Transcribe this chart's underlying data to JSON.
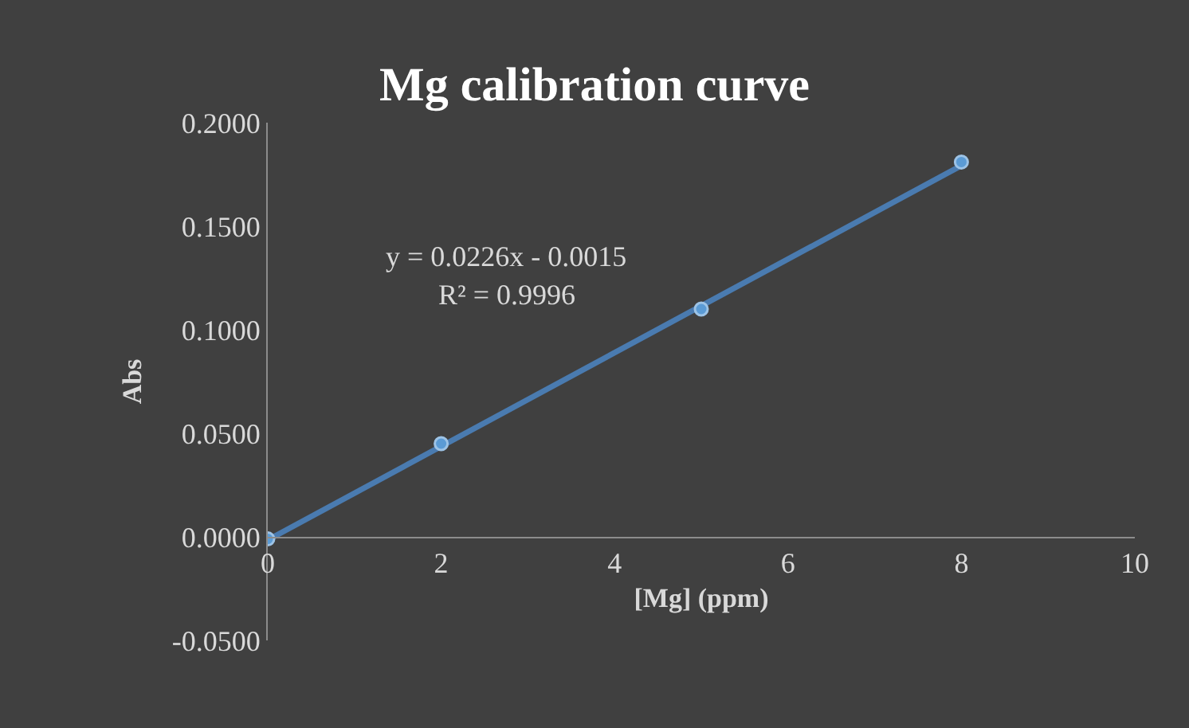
{
  "chart_data": {
    "type": "scatter",
    "title": "Mg calibration curve",
    "xlabel": "[Mg] (ppm)",
    "ylabel": "Abs",
    "annotations": [
      "y = 0.0226x - 0.0015",
      "R² = 0.9996"
    ],
    "xlim": [
      0,
      10
    ],
    "xticks": [
      0,
      2,
      4,
      6,
      8,
      10
    ],
    "ylim": [
      -0.05,
      0.2
    ],
    "yticks": [
      {
        "value": -0.05,
        "label": "-0.0500"
      },
      {
        "value": 0,
        "label": "0.0000"
      },
      {
        "value": 0.05,
        "label": "0.0500"
      },
      {
        "value": 0.1,
        "label": "0.1000"
      },
      {
        "value": 0.15,
        "label": "0.1500"
      },
      {
        "value": 0.2,
        "label": "0.2000"
      }
    ],
    "grid": false,
    "legend": false,
    "series": [
      {
        "type": "scatter",
        "marker": "circle",
        "color": "#5b9bd5",
        "x": [
          0,
          2,
          5,
          8
        ],
        "values": [
          -0.001,
          0.045,
          0.11,
          0.181
        ]
      },
      {
        "type": "line",
        "color": "#4a7bb0",
        "x": [
          0,
          8
        ],
        "values": [
          -0.0015,
          0.1793
        ]
      }
    ]
  }
}
